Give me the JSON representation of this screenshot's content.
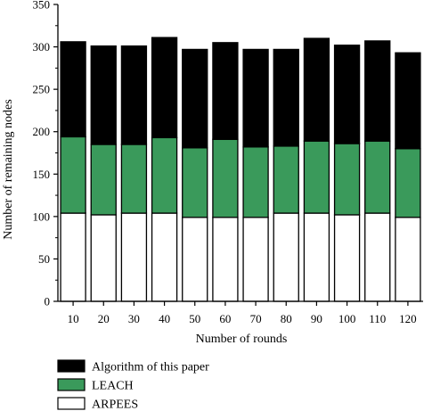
{
  "chart_data": {
    "type": "bar",
    "stacked": true,
    "categories": [
      "10",
      "20",
      "30",
      "40",
      "50",
      "60",
      "70",
      "80",
      "90",
      "100",
      "110",
      "120"
    ],
    "series": [
      {
        "name": "ARPEES",
        "color": "#ffffff",
        "values": [
          104,
          102,
          104,
          104,
          99,
          99,
          99,
          104,
          104,
          102,
          104,
          99
        ]
      },
      {
        "name": "LEACH",
        "color": "#3a9a5b",
        "values": [
          90,
          83,
          81,
          89,
          82,
          92,
          83,
          79,
          85,
          84,
          85,
          81
        ]
      },
      {
        "name": "Algorithm of this paper",
        "color": "#000000",
        "values": [
          112,
          116,
          116,
          118,
          116,
          114,
          115,
          114,
          121,
          116,
          118,
          113
        ]
      }
    ],
    "xlabel": "Number of rounds",
    "ylabel": "Number of remaining nodes",
    "ylim": [
      0,
      350
    ],
    "yticks": [
      0,
      50,
      100,
      150,
      200,
      250,
      300,
      350
    ],
    "legend_position": "bottom",
    "legend_order": [
      "Algorithm of this paper",
      "LEACH",
      "ARPEES"
    ],
    "grid": false
  }
}
